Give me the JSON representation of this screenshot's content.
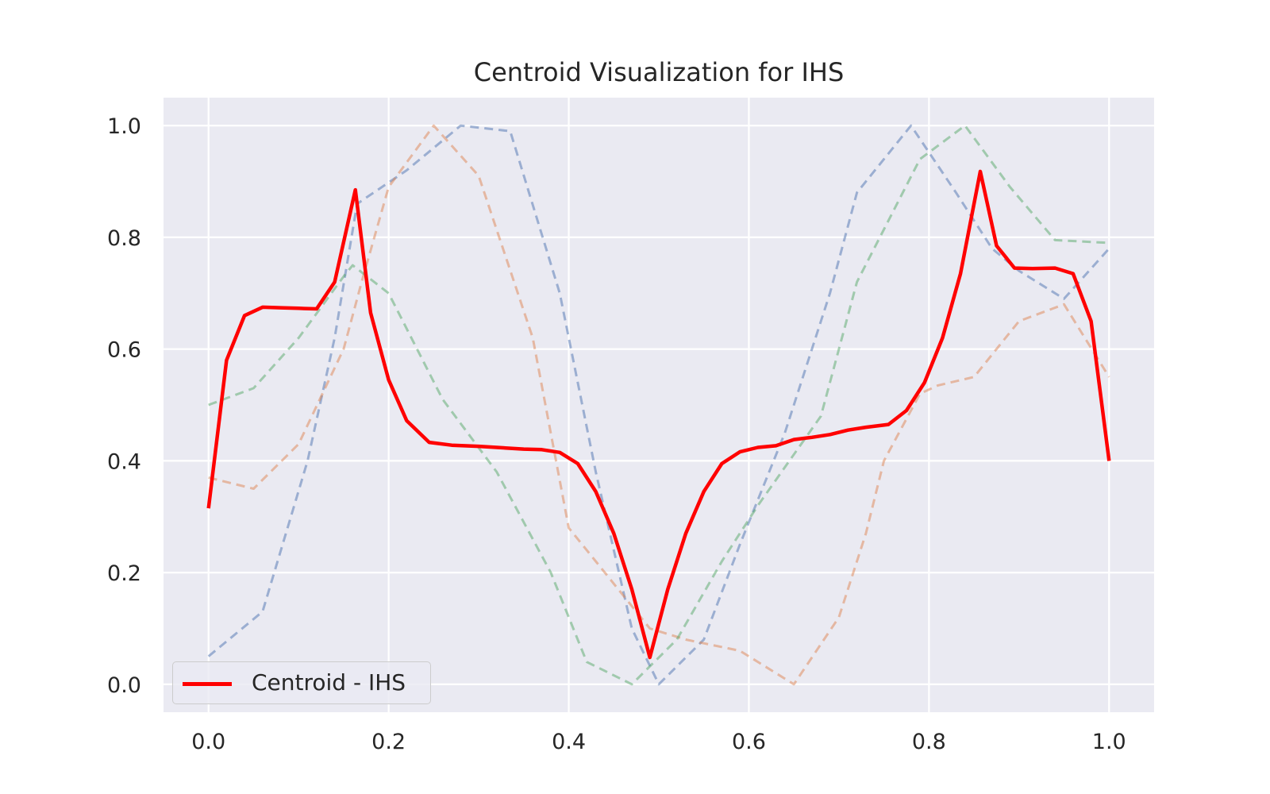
{
  "chart_data": {
    "type": "line",
    "title": "Centroid Visualization for IHS",
    "xlabel": "",
    "ylabel": "",
    "xlim": [
      -0.05,
      1.05
    ],
    "ylim": [
      -0.05,
      1.05
    ],
    "x_ticks": [
      "0.0",
      "0.2",
      "0.4",
      "0.6",
      "0.8",
      "1.0"
    ],
    "y_ticks": [
      "0.0",
      "0.2",
      "0.4",
      "0.6",
      "0.8",
      "1.0"
    ],
    "grid": true,
    "legend": {
      "position": "lower-left",
      "entries": [
        "Centroid - IHS"
      ]
    },
    "series": [
      {
        "color": "#4C72B0",
        "style": "dashed",
        "points": [
          [
            0.0,
            0.05
          ],
          [
            0.06,
            0.13
          ],
          [
            0.11,
            0.4
          ],
          [
            0.14,
            0.62
          ],
          [
            0.165,
            0.86
          ],
          [
            0.22,
            0.92
          ],
          [
            0.28,
            1.0
          ],
          [
            0.335,
            0.99
          ],
          [
            0.39,
            0.7
          ],
          [
            0.43,
            0.38
          ],
          [
            0.47,
            0.1
          ],
          [
            0.5,
            0.0
          ],
          [
            0.55,
            0.08
          ],
          [
            0.59,
            0.25
          ],
          [
            0.64,
            0.45
          ],
          [
            0.69,
            0.7
          ],
          [
            0.72,
            0.88
          ],
          [
            0.78,
            1.0
          ],
          [
            0.83,
            0.88
          ],
          [
            0.87,
            0.78
          ],
          [
            0.9,
            0.74
          ],
          [
            0.95,
            0.69
          ],
          [
            1.0,
            0.78
          ]
        ]
      },
      {
        "color": "#DD8452",
        "style": "dashed",
        "points": [
          [
            0.0,
            0.37
          ],
          [
            0.05,
            0.35
          ],
          [
            0.1,
            0.43
          ],
          [
            0.15,
            0.6
          ],
          [
            0.17,
            0.72
          ],
          [
            0.2,
            0.89
          ],
          [
            0.25,
            1.0
          ],
          [
            0.3,
            0.91
          ],
          [
            0.36,
            0.62
          ],
          [
            0.4,
            0.28
          ],
          [
            0.43,
            0.22
          ],
          [
            0.46,
            0.16
          ],
          [
            0.49,
            0.1
          ],
          [
            0.53,
            0.08
          ],
          [
            0.59,
            0.06
          ],
          [
            0.65,
            0.0
          ],
          [
            0.7,
            0.12
          ],
          [
            0.73,
            0.27
          ],
          [
            0.75,
            0.4
          ],
          [
            0.79,
            0.52
          ],
          [
            0.81,
            0.535
          ],
          [
            0.85,
            0.55
          ],
          [
            0.9,
            0.65
          ],
          [
            0.95,
            0.68
          ],
          [
            1.0,
            0.55
          ]
        ]
      },
      {
        "color": "#55A868",
        "style": "dashed",
        "points": [
          [
            0.0,
            0.5
          ],
          [
            0.05,
            0.53
          ],
          [
            0.1,
            0.62
          ],
          [
            0.15,
            0.73
          ],
          [
            0.16,
            0.75
          ],
          [
            0.2,
            0.7
          ],
          [
            0.26,
            0.51
          ],
          [
            0.32,
            0.38
          ],
          [
            0.38,
            0.2
          ],
          [
            0.42,
            0.04
          ],
          [
            0.47,
            0.0
          ],
          [
            0.52,
            0.08
          ],
          [
            0.57,
            0.22
          ],
          [
            0.61,
            0.32
          ],
          [
            0.68,
            0.48
          ],
          [
            0.72,
            0.72
          ],
          [
            0.79,
            0.94
          ],
          [
            0.84,
            1.0
          ],
          [
            0.89,
            0.89
          ],
          [
            0.94,
            0.795
          ],
          [
            1.0,
            0.79
          ]
        ]
      },
      {
        "name": "Centroid - IHS",
        "color": "#ff0000",
        "style": "solid",
        "points": [
          [
            0.0,
            0.315
          ],
          [
            0.02,
            0.58
          ],
          [
            0.04,
            0.66
          ],
          [
            0.06,
            0.675
          ],
          [
            0.08,
            0.674
          ],
          [
            0.1,
            0.673
          ],
          [
            0.12,
            0.672
          ],
          [
            0.14,
            0.72
          ],
          [
            0.163,
            0.885
          ],
          [
            0.18,
            0.665
          ],
          [
            0.2,
            0.545
          ],
          [
            0.22,
            0.472
          ],
          [
            0.245,
            0.433
          ],
          [
            0.27,
            0.428
          ],
          [
            0.3,
            0.426
          ],
          [
            0.32,
            0.424
          ],
          [
            0.35,
            0.421
          ],
          [
            0.37,
            0.42
          ],
          [
            0.39,
            0.415
          ],
          [
            0.41,
            0.395
          ],
          [
            0.43,
            0.345
          ],
          [
            0.45,
            0.27
          ],
          [
            0.47,
            0.17
          ],
          [
            0.49,
            0.048
          ],
          [
            0.51,
            0.17
          ],
          [
            0.53,
            0.27
          ],
          [
            0.55,
            0.345
          ],
          [
            0.57,
            0.395
          ],
          [
            0.59,
            0.416
          ],
          [
            0.61,
            0.424
          ],
          [
            0.63,
            0.427
          ],
          [
            0.65,
            0.438
          ],
          [
            0.67,
            0.442
          ],
          [
            0.69,
            0.447
          ],
          [
            0.71,
            0.455
          ],
          [
            0.73,
            0.46
          ],
          [
            0.755,
            0.465
          ],
          [
            0.775,
            0.49
          ],
          [
            0.795,
            0.54
          ],
          [
            0.815,
            0.62
          ],
          [
            0.835,
            0.735
          ],
          [
            0.857,
            0.918
          ],
          [
            0.875,
            0.785
          ],
          [
            0.895,
            0.745
          ],
          [
            0.915,
            0.744
          ],
          [
            0.94,
            0.745
          ],
          [
            0.96,
            0.735
          ],
          [
            0.98,
            0.65
          ],
          [
            1.0,
            0.4
          ]
        ]
      }
    ]
  }
}
